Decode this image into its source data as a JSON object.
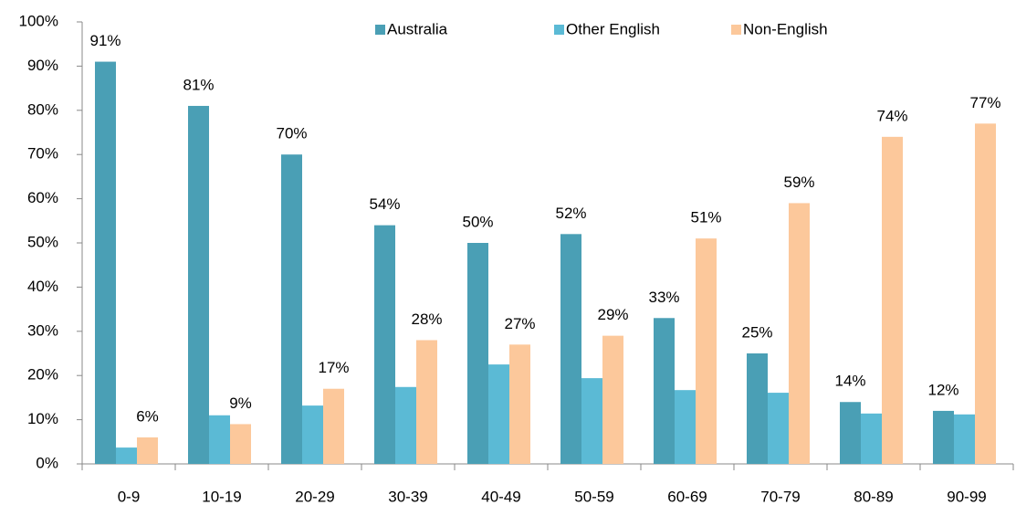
{
  "chart_data": {
    "type": "bar",
    "categories": [
      "0-9",
      "10-19",
      "20-29",
      "30-39",
      "40-49",
      "50-59",
      "60-69",
      "70-79",
      "80-89",
      "90-99"
    ],
    "series": [
      {
        "name": "Australia",
        "color": "#4a9fb5",
        "values": [
          91,
          81,
          70,
          54,
          50,
          52,
          33,
          25,
          14,
          12
        ],
        "value_labels": [
          "91%",
          "81%",
          "70%",
          "54%",
          "50%",
          "52%",
          "33%",
          "25%",
          "14%",
          "12%"
        ]
      },
      {
        "name": "Other English",
        "color": "#5bbad5",
        "values": [
          3.7,
          11,
          13.2,
          17.4,
          22.5,
          19.4,
          16.7,
          16.1,
          11.4,
          11.2
        ]
      },
      {
        "name": "Non-English",
        "color": "#fcc89b",
        "values": [
          6,
          9,
          17,
          28,
          27,
          29,
          51,
          59,
          74,
          77
        ],
        "value_labels": [
          "6%",
          "9%",
          "17%",
          "28%",
          "27%",
          "29%",
          "51%",
          "59%",
          "74%",
          "77%"
        ]
      }
    ],
    "ylim": [
      0,
      100
    ],
    "yticks": [
      {
        "value": 0,
        "label": "0%"
      },
      {
        "value": 10,
        "label": "10%"
      },
      {
        "value": 20,
        "label": "20%"
      },
      {
        "value": 30,
        "label": "30%"
      },
      {
        "value": 40,
        "label": "40%"
      },
      {
        "value": 50,
        "label": "50%"
      },
      {
        "value": 60,
        "label": "60%"
      },
      {
        "value": 70,
        "label": "70%"
      },
      {
        "value": 80,
        "label": "80%"
      },
      {
        "value": 90,
        "label": "90%"
      },
      {
        "value": 100,
        "label": "100%"
      }
    ],
    "grid": false,
    "legend": "upper center"
  }
}
